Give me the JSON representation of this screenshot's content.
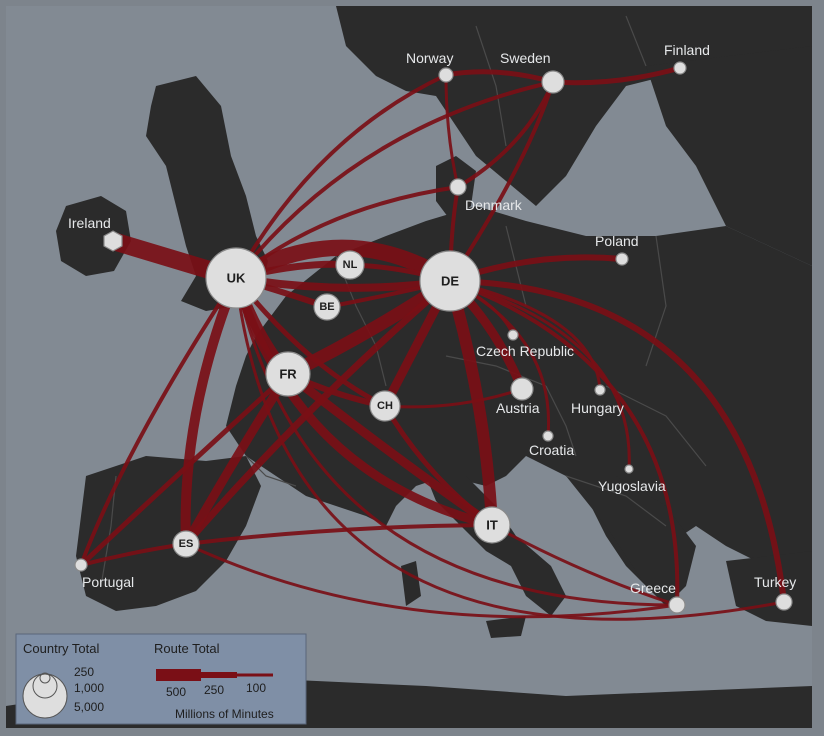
{
  "map": {
    "colors": {
      "sea": "#828a93",
      "land": "#2b2b2b",
      "border": "#4a4a4a",
      "route": "#7a0f16",
      "node_fill": "#dedede",
      "legend_bg": "#7f8fa6"
    },
    "countries": [
      {
        "key": "uk",
        "label": "UK",
        "inside": true
      },
      {
        "key": "de",
        "label": "DE",
        "inside": true
      },
      {
        "key": "fr",
        "label": "FR",
        "inside": true
      },
      {
        "key": "it",
        "label": "IT",
        "inside": true
      },
      {
        "key": "es",
        "label": "ES",
        "inside": true
      },
      {
        "key": "nl",
        "label": "NL",
        "inside": true
      },
      {
        "key": "be",
        "label": "BE",
        "inside": true
      },
      {
        "key": "ch",
        "label": "CH",
        "inside": true
      },
      {
        "key": "ireland",
        "label": "Ireland",
        "inside": false
      },
      {
        "key": "norway",
        "label": "Norway",
        "inside": false
      },
      {
        "key": "sweden",
        "label": "Sweden",
        "inside": false
      },
      {
        "key": "finland",
        "label": "Finland",
        "inside": false
      },
      {
        "key": "denmark",
        "label": "Denmark",
        "inside": false
      },
      {
        "key": "poland",
        "label": "Poland",
        "inside": false
      },
      {
        "key": "czech",
        "label": "Czech Republic",
        "inside": false
      },
      {
        "key": "austria",
        "label": "Austria",
        "inside": false
      },
      {
        "key": "hungary",
        "label": "Hungary",
        "inside": false
      },
      {
        "key": "croatia",
        "label": "Croatia",
        "inside": false
      },
      {
        "key": "yugoslavia",
        "label": "Yugoslavia",
        "inside": false
      },
      {
        "key": "portugal",
        "label": "Portugal",
        "inside": false
      },
      {
        "key": "greece",
        "label": "Greece",
        "inside": false
      },
      {
        "key": "turkey",
        "label": "Turkey",
        "inside": false
      }
    ]
  },
  "legend": {
    "country_total_title": "Country Total",
    "country_total_values": [
      "250",
      "1,000",
      "5,000"
    ],
    "route_total_title": "Route Total",
    "route_total_values": [
      "500",
      "250",
      "100"
    ],
    "units": "Millions of Minutes"
  }
}
